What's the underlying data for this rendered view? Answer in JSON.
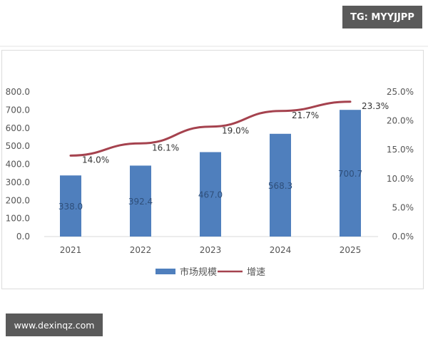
{
  "watermarks": {
    "top_right": "TG: MYYJJPP",
    "bottom_left": "www.dexinqz.com"
  },
  "colors": {
    "bar": "#4f7fbd",
    "line": "#a5424e",
    "axis_text": "#555555",
    "label_text": "#333333",
    "bar_label_text": "#2f4f7a",
    "watermark_bg": "#5a5a5a"
  },
  "chart_data": {
    "type": "bar",
    "combo": "bar+line (dual axis)",
    "title": "",
    "categories": [
      "2021",
      "2022",
      "2023",
      "2024",
      "2025"
    ],
    "series": [
      {
        "name": "市场规模",
        "type": "bar",
        "axis": "left",
        "values": [
          338.0,
          392.4,
          467.0,
          568.3,
          700.7
        ],
        "labels": [
          "338.0",
          "392.4",
          "467.0",
          "568.3",
          "700.7"
        ]
      },
      {
        "name": "增速",
        "type": "line",
        "axis": "right",
        "values": [
          14.0,
          16.1,
          19.0,
          21.7,
          23.3
        ],
        "labels": [
          "14.0%",
          "16.1%",
          "19.0%",
          "21.7%",
          "23.3%"
        ]
      }
    ],
    "left_axis": {
      "ylim": [
        0,
        800
      ],
      "ticks": [
        "0.0",
        "100.0",
        "200.0",
        "300.0",
        "400.0",
        "500.0",
        "600.0",
        "700.0",
        "800.0"
      ]
    },
    "right_axis": {
      "ylim": [
        0,
        25
      ],
      "ticks": [
        "0.0%",
        "5.0%",
        "10.0%",
        "15.0%",
        "20.0%",
        "25.0%"
      ]
    },
    "xlabel": "",
    "ylabel": "",
    "grid": false,
    "legend": {
      "position": "bottom",
      "entries": [
        "市场规模",
        "增速"
      ]
    }
  }
}
